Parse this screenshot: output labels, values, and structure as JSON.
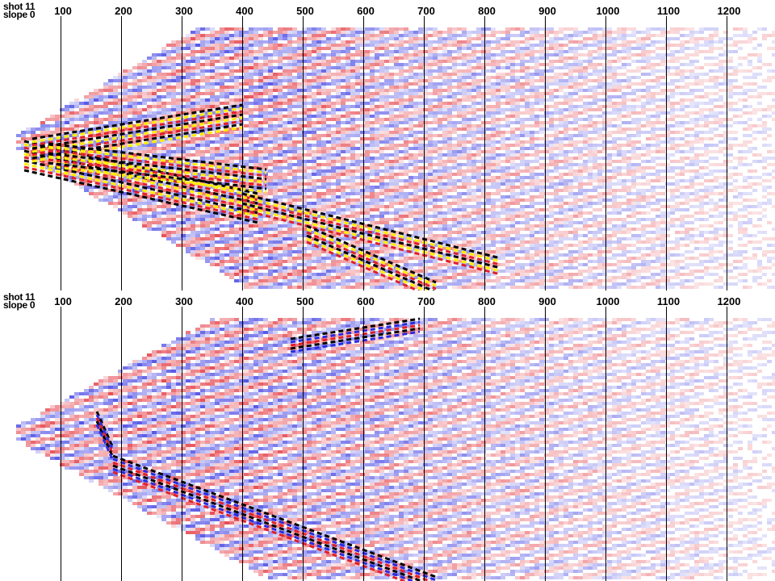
{
  "panels": [
    {
      "id": "top",
      "header": {
        "shot": "shot 11",
        "slope": "slope 0"
      },
      "ticks": [
        "100",
        "200",
        "300",
        "400",
        "500",
        "600",
        "700",
        "800",
        "900",
        "1000",
        "1100",
        "1200"
      ]
    },
    {
      "id": "bottom",
      "header": {
        "shot": "shot 11",
        "slope": "slope 0"
      },
      "ticks": [
        "100",
        "200",
        "300",
        "400",
        "500",
        "600",
        "700",
        "800",
        "900",
        "1000",
        "1100",
        "1200"
      ]
    }
  ],
  "colors": {
    "positive_strong": "#e0202a",
    "negative_strong": "#2a2ae0",
    "peak_fill": "#ffee00",
    "peak_black": "#000000",
    "background": "#ffffff",
    "grid_line": "#000000"
  }
}
